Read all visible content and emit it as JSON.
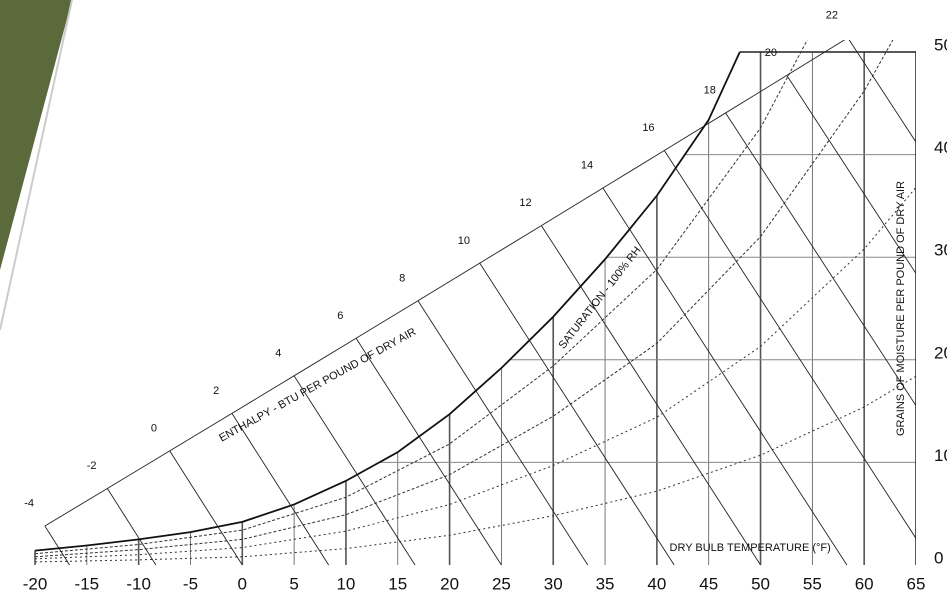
{
  "chart_data": {
    "type": "line",
    "x_label": "DRY BULB TEMPERATURE (°F)",
    "y_label": "GRAINS OF MOISTURE PER POUND OF DRY AIR",
    "enthalpy_label": "ENTHALPY - BTU PER POUND OF DRY AIR",
    "xlim": [
      -20,
      65
    ],
    "ylim": [
      0,
      50
    ],
    "xticks": [
      -20,
      -15,
      -10,
      -5,
      0,
      5,
      10,
      15,
      20,
      25,
      30,
      35,
      40,
      45,
      50,
      55,
      60,
      65
    ],
    "yticks": [
      0,
      10,
      20,
      30,
      40,
      50
    ],
    "y_axis_side": "right",
    "series": [
      {
        "name": "SATURATION - 100% RH",
        "color": "#111111",
        "x": [
          -20,
          -15,
          -10,
          -5,
          0,
          5,
          10,
          15,
          20,
          25,
          30,
          35,
          40,
          45,
          48
        ],
        "values": [
          1.4,
          1.9,
          2.5,
          3.2,
          4.2,
          5.9,
          8.2,
          11.0,
          14.7,
          19.2,
          24.2,
          29.8,
          36.0,
          43.4,
          50
        ]
      }
    ],
    "rh_curves": {
      "color": "#333333",
      "x": [
        -20,
        -10,
        0,
        10,
        20,
        30,
        40,
        50,
        60,
        65
      ],
      "series": [
        {
          "values": [
            0.3,
            0.5,
            0.8,
            1.6,
            2.9,
            4.8,
            7.2,
            10.7,
            15.4,
            18.4
          ]
        },
        {
          "values": [
            0.6,
            1.0,
            1.7,
            3.3,
            5.9,
            9.7,
            14.4,
            21.3,
            30.8,
            36.8
          ]
        },
        {
          "values": [
            0.8,
            1.5,
            2.5,
            4.9,
            8.8,
            14.5,
            21.6,
            32.0,
            46.2,
            55.2
          ]
        },
        {
          "values": [
            1.1,
            2.0,
            3.4,
            6.6,
            11.8,
            19.4,
            28.8,
            42.6,
            61.6,
            73.6
          ]
        }
      ]
    },
    "enthalpy_lines": [
      -4,
      -2,
      0,
      2,
      4,
      6,
      8,
      10,
      12,
      14,
      16,
      18,
      20,
      22
    ]
  }
}
